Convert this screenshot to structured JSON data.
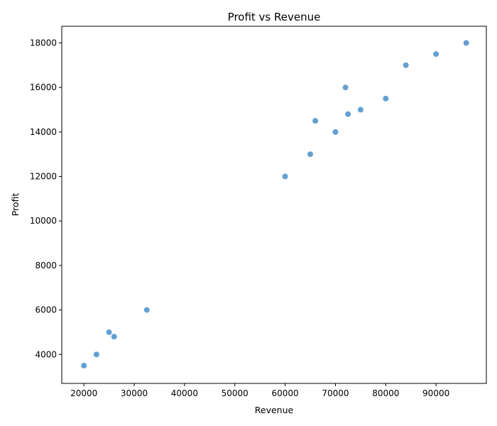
{
  "chart_data": {
    "type": "scatter",
    "title": "Profit vs Revenue",
    "xlabel": "Revenue",
    "ylabel": "Profit",
    "xlim": [
      15600,
      100000
    ],
    "ylim": [
      2700,
      18750
    ],
    "xticks": [
      20000,
      30000,
      40000,
      50000,
      60000,
      70000,
      80000,
      90000
    ],
    "yticks": [
      4000,
      6000,
      8000,
      10000,
      12000,
      14000,
      16000,
      18000
    ],
    "grid": false,
    "marker_color": "#5b9bd0",
    "x": [
      20000,
      22500,
      25000,
      26000,
      32500,
      60000,
      65000,
      66000,
      70000,
      72000,
      72500,
      75000,
      80000,
      84000,
      90000,
      96000
    ],
    "y": [
      3500,
      4000,
      5000,
      4800,
      6000,
      12000,
      13000,
      14500,
      14000,
      16000,
      14800,
      15000,
      15500,
      17000,
      17500,
      18000
    ]
  }
}
